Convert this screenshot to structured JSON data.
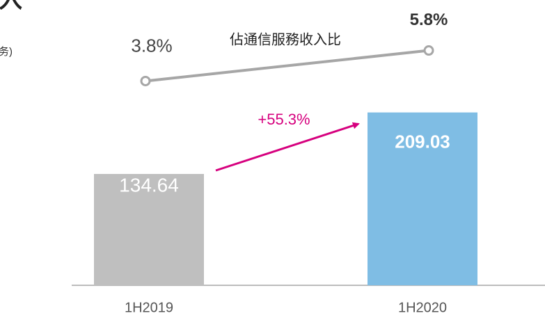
{
  "title_fragment": "入",
  "subtitle_fragment": "务)",
  "chart_data": {
    "type": "bar",
    "categories": [
      "1H2019",
      "1H2020"
    ],
    "series": [
      {
        "name": "revenue",
        "values": [
          134.64,
          209.03
        ],
        "colors": [
          "#bfbfbf",
          "#7fbde4"
        ]
      },
      {
        "name": "佔通信服務收入比",
        "type": "line",
        "axis": "y2",
        "color": "#a6a6a6",
        "values": [
          3.8,
          5.8
        ],
        "value_labels": [
          "3.8%",
          "5.8%"
        ]
      }
    ],
    "annotation": "+55.3%",
    "annotation_color": "#d6007e",
    "ylim": [
      0,
      345
    ],
    "y2lim": [
      0,
      9.1
    ]
  }
}
